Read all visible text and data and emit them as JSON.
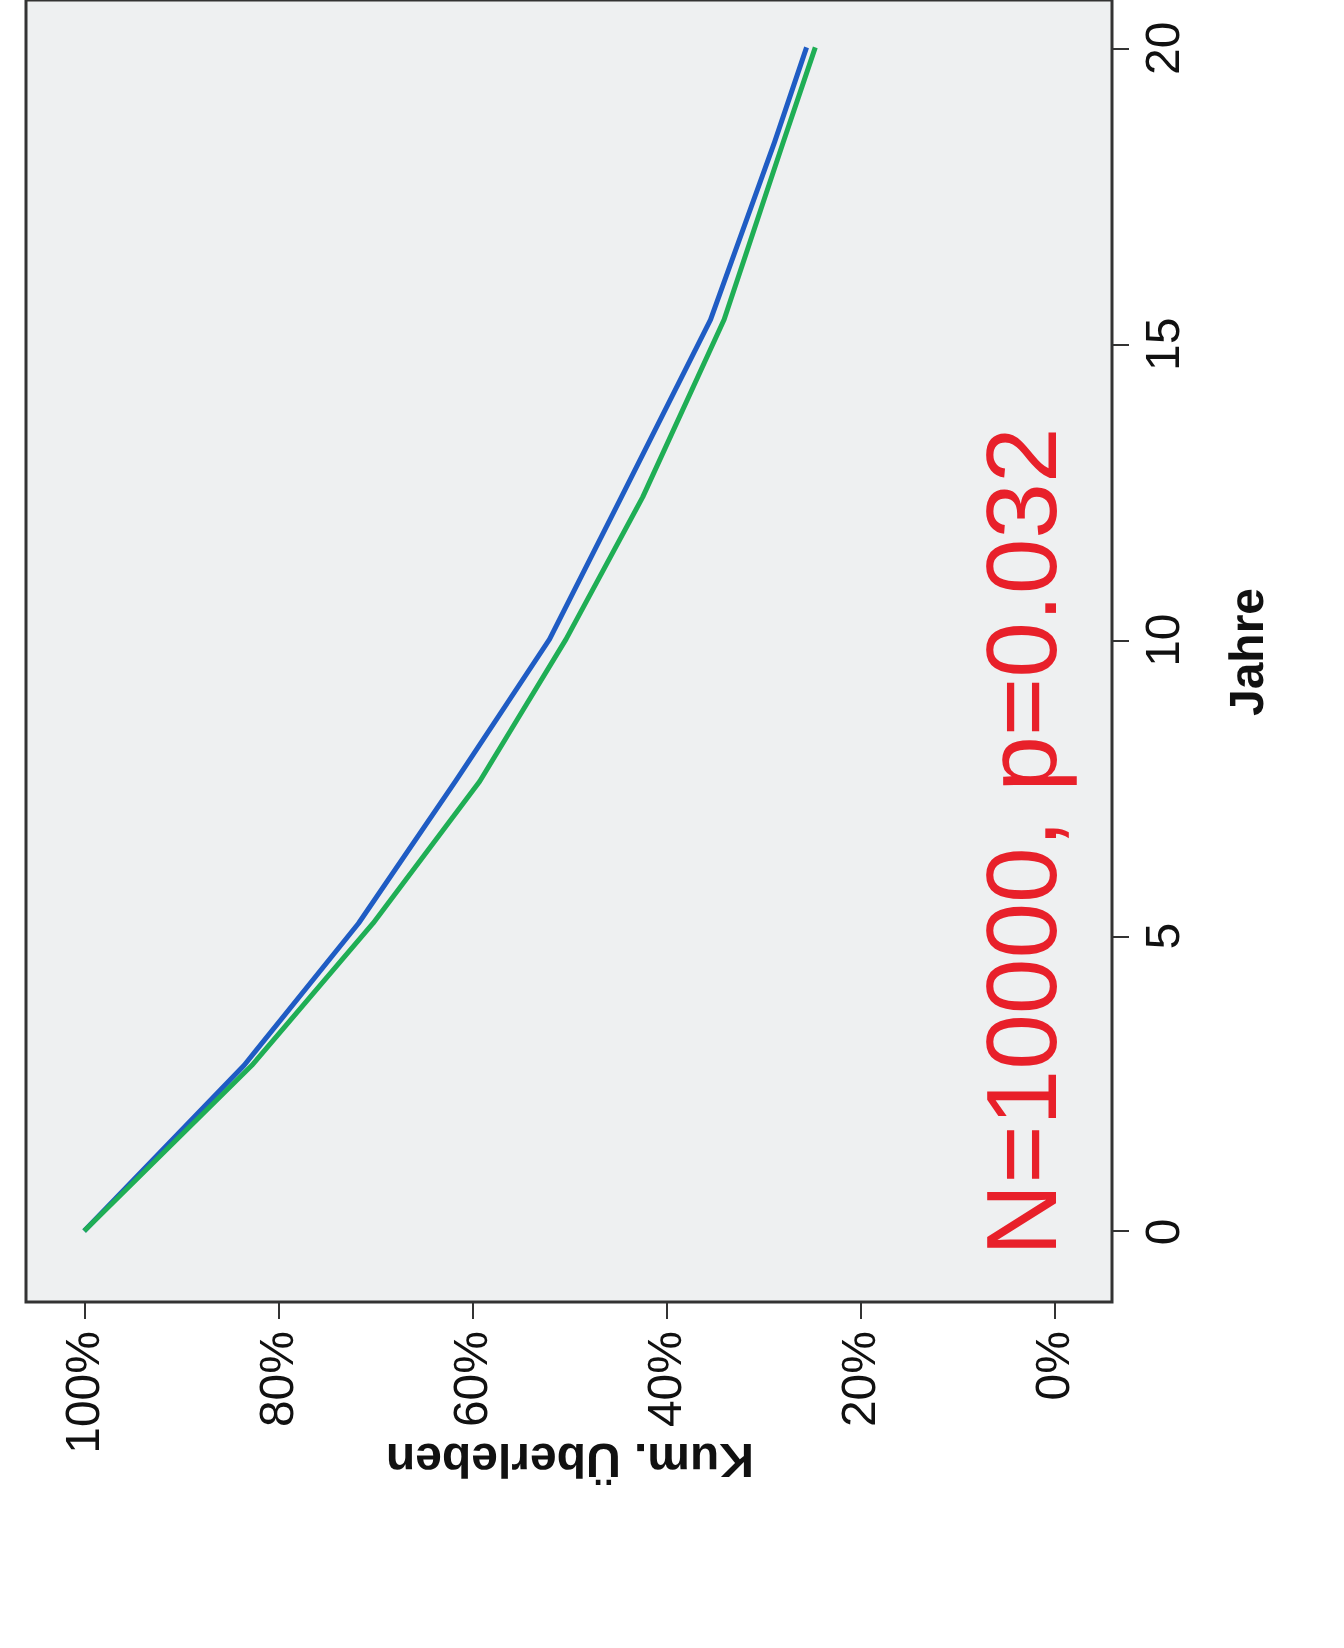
{
  "chart_data": {
    "type": "line",
    "xlabel": "Kum. Überleben",
    "ylabel": "Jahre",
    "series": [
      {
        "color": "#1f5cc4",
        "x": [
          100,
          83.5,
          71.7,
          61.7,
          52,
          44.6,
          35.4,
          28.8,
          25.5
        ],
        "values": [
          0,
          2.8,
          5.2,
          7.6,
          10,
          12.4,
          15.4,
          18.4,
          20
        ]
      },
      {
        "color": "#1fae55",
        "x": [
          100,
          82.7,
          70.2,
          59.2,
          50.3,
          42.4,
          34.0,
          27.9,
          24.6
        ],
        "values": [
          0,
          2.8,
          5.2,
          7.6,
          10,
          12.4,
          15.4,
          18.4,
          20
        ]
      }
    ],
    "xlim": [
      106,
      -6
    ],
    "xticks": [
      {
        "value": 100,
        "label": "100%"
      },
      {
        "value": 80,
        "label": "80%"
      },
      {
        "value": 60,
        "label": "60%"
      },
      {
        "value": 40,
        "label": "40%"
      },
      {
        "value": 20,
        "label": "20%"
      },
      {
        "value": 0,
        "label": "0%"
      }
    ],
    "ylim": [
      -1.2,
      20.8
    ],
    "yticks": [
      0,
      5,
      10,
      15,
      20
    ],
    "annotations": [
      "N=10000, p=0.032"
    ]
  }
}
